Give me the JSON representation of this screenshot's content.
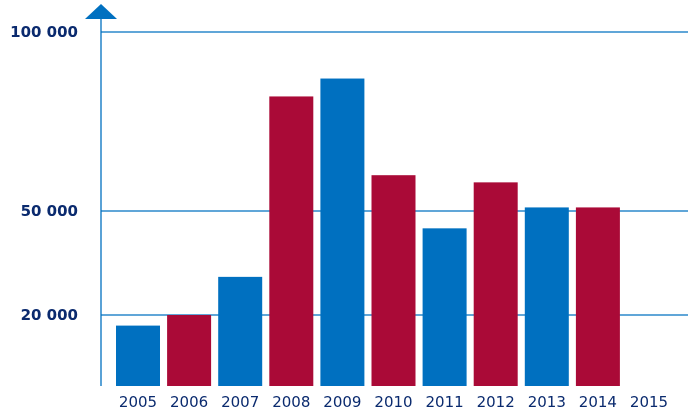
{
  "chart_data": {
    "type": "bar",
    "categories": [
      "2005",
      "2006",
      "2007",
      "2008",
      "2009",
      "2010",
      "2011",
      "2012",
      "2013",
      "2014",
      "2015"
    ],
    "values": [
      18000,
      20000,
      31000,
      82000,
      87000,
      60000,
      45000,
      58000,
      51000,
      51000,
      null
    ],
    "bar_colors": [
      "#0070c0",
      "#aa0a37",
      "#0070c0",
      "#aa0a37",
      "#0070c0",
      "#aa0a37",
      "#0070c0",
      "#aa0a37",
      "#0070c0",
      "#aa0a37",
      "#0070c0"
    ],
    "y_ticks": [
      20000,
      50000,
      100000
    ],
    "y_tick_labels": [
      "20 000",
      "50 000",
      "100 000"
    ],
    "ylim": [
      0,
      100000
    ],
    "y_scale": "nonlinear",
    "grid": true,
    "axis_color": "#0070c0",
    "title": "",
    "xlabel": "",
    "ylabel": ""
  }
}
